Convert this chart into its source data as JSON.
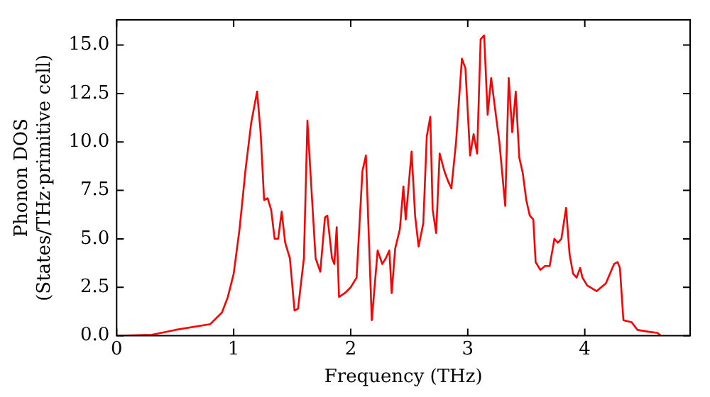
{
  "chart_data": {
    "type": "line",
    "xlabel": "Frequency (THz)",
    "ylabel": "Phonon DOS\n(States/THz·primitive cell)",
    "xlim": [
      0,
      4.9
    ],
    "ylim": [
      0,
      16.3
    ],
    "xticks": [
      0,
      1,
      2,
      3,
      4
    ],
    "yticks": [
      {
        "value": 0,
        "label": "0.0"
      },
      2.5,
      {
        "value": 5,
        "label": "5.0"
      },
      7.5,
      {
        "value": 10,
        "label": "10.0"
      },
      12.5,
      {
        "value": 15,
        "label": "15.0"
      }
    ],
    "grid": false,
    "legend": false,
    "marker": "none",
    "line_style": "solid",
    "series": [
      {
        "color": "#ff0000",
        "x": [
          0,
          0.3,
          0.5,
          0.8,
          0.9,
          0.95,
          1.0,
          1.05,
          1.1,
          1.15,
          1.2,
          1.23,
          1.26,
          1.29,
          1.32,
          1.35,
          1.38,
          1.41,
          1.44,
          1.48,
          1.52,
          1.55,
          1.6,
          1.63,
          1.67,
          1.7,
          1.74,
          1.78,
          1.8,
          1.84,
          1.86,
          1.88,
          1.9,
          1.95,
          2.0,
          2.05,
          2.1,
          2.13,
          2.18,
          2.23,
          2.27,
          2.3,
          2.33,
          2.35,
          2.38,
          2.42,
          2.45,
          2.47,
          2.52,
          2.55,
          2.58,
          2.62,
          2.65,
          2.68,
          2.7,
          2.73,
          2.76,
          2.8,
          2.83,
          2.86,
          2.9,
          2.95,
          2.98,
          3.02,
          3.05,
          3.08,
          3.11,
          3.14,
          3.17,
          3.2,
          3.24,
          3.27,
          3.32,
          3.35,
          3.38,
          3.41,
          3.44,
          3.47,
          3.5,
          3.53,
          3.56,
          3.58,
          3.62,
          3.66,
          3.7,
          3.74,
          3.77,
          3.8,
          3.84,
          3.87,
          3.9,
          3.93,
          3.96,
          3.98,
          4.02,
          4.1,
          4.18,
          4.25,
          4.28,
          4.3,
          4.33,
          4.4,
          4.45,
          4.55,
          4.62,
          4.65
        ],
        "values": [
          0,
          0.05,
          0.3,
          0.6,
          1.2,
          2.0,
          3.2,
          5.5,
          8.5,
          11,
          12.6,
          10.5,
          7.0,
          7.1,
          6.5,
          5.0,
          5.0,
          6.4,
          4.8,
          4.0,
          1.3,
          1.4,
          4.0,
          11.1,
          7.0,
          4.0,
          3.3,
          6.1,
          6.2,
          4.0,
          3.7,
          5.6,
          2.0,
          2.2,
          2.5,
          3.0,
          8.5,
          9.3,
          0.8,
          4.4,
          3.7,
          4.0,
          4.4,
          2.2,
          4.5,
          5.5,
          7.7,
          6.0,
          9.5,
          6.2,
          4.6,
          5.8,
          10.3,
          11.3,
          6.5,
          5.3,
          9.4,
          8.5,
          8.0,
          7.6,
          10.0,
          14.3,
          13.8,
          9.3,
          10.4,
          9.4,
          15.3,
          15.5,
          11.4,
          13.3,
          11.4,
          10.0,
          6.7,
          13.3,
          10.5,
          12.6,
          9.2,
          8.4,
          7.0,
          6.2,
          6.0,
          3.8,
          3.4,
          3.6,
          3.6,
          5.0,
          4.8,
          5.0,
          6.6,
          4.2,
          3.2,
          3.0,
          3.5,
          3.0,
          2.6,
          2.3,
          2.7,
          3.7,
          3.8,
          3.5,
          0.8,
          0.7,
          0.3,
          0.2,
          0.15,
          0
        ]
      }
    ]
  }
}
